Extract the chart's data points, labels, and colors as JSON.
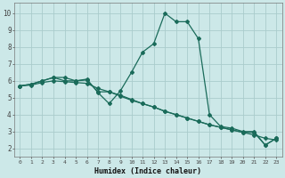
{
  "title": "",
  "xlabel": "Humidex (Indice chaleur)",
  "bg_color": "#cce8e8",
  "grid_color": "#aacccc",
  "line_color": "#1a6b5a",
  "xlim": [
    -0.5,
    23.5
  ],
  "ylim": [
    1.5,
    10.6
  ],
  "x_ticks": [
    0,
    1,
    2,
    3,
    4,
    5,
    6,
    7,
    8,
    9,
    10,
    11,
    12,
    13,
    14,
    15,
    16,
    17,
    18,
    19,
    20,
    21,
    22,
    23
  ],
  "y_ticks": [
    2,
    3,
    4,
    5,
    6,
    7,
    8,
    9,
    10
  ],
  "series1_x": [
    0,
    1,
    2,
    3,
    4,
    5,
    6,
    7,
    8,
    9,
    10,
    11,
    12,
    13,
    14,
    15,
    16,
    17,
    18,
    19,
    20,
    21,
    22,
    23
  ],
  "series1_y": [
    5.7,
    5.8,
    6.0,
    6.2,
    6.2,
    6.0,
    6.1,
    5.3,
    4.65,
    5.4,
    6.5,
    7.7,
    8.2,
    10.0,
    9.5,
    9.5,
    8.5,
    4.0,
    3.3,
    3.2,
    3.0,
    3.0,
    2.2,
    2.6
  ],
  "series2_x": [
    0,
    1,
    2,
    3,
    4,
    5,
    6,
    7,
    8,
    9,
    10,
    11,
    12,
    13,
    14,
    15,
    16,
    17,
    18,
    19,
    20,
    21,
    22,
    23
  ],
  "series2_y": [
    5.7,
    5.75,
    5.9,
    6.0,
    5.95,
    5.9,
    5.85,
    5.55,
    5.35,
    5.15,
    4.9,
    4.65,
    4.45,
    4.2,
    4.0,
    3.8,
    3.6,
    3.4,
    3.25,
    3.1,
    2.95,
    2.8,
    2.6,
    2.5
  ],
  "series3_x": [
    0,
    1,
    2,
    3,
    4,
    5,
    6,
    7,
    8,
    9,
    10,
    11,
    12,
    13,
    14,
    15,
    16,
    17,
    18,
    19,
    20,
    21,
    22,
    23
  ],
  "series3_y": [
    5.7,
    5.8,
    6.0,
    6.2,
    6.0,
    6.0,
    6.05,
    5.35,
    5.35,
    5.1,
    4.85,
    4.65,
    4.45,
    4.2,
    4.0,
    3.8,
    3.6,
    3.4,
    3.25,
    3.1,
    2.95,
    2.95,
    2.2,
    2.6
  ],
  "markersize": 2.0,
  "linewidth": 0.9
}
